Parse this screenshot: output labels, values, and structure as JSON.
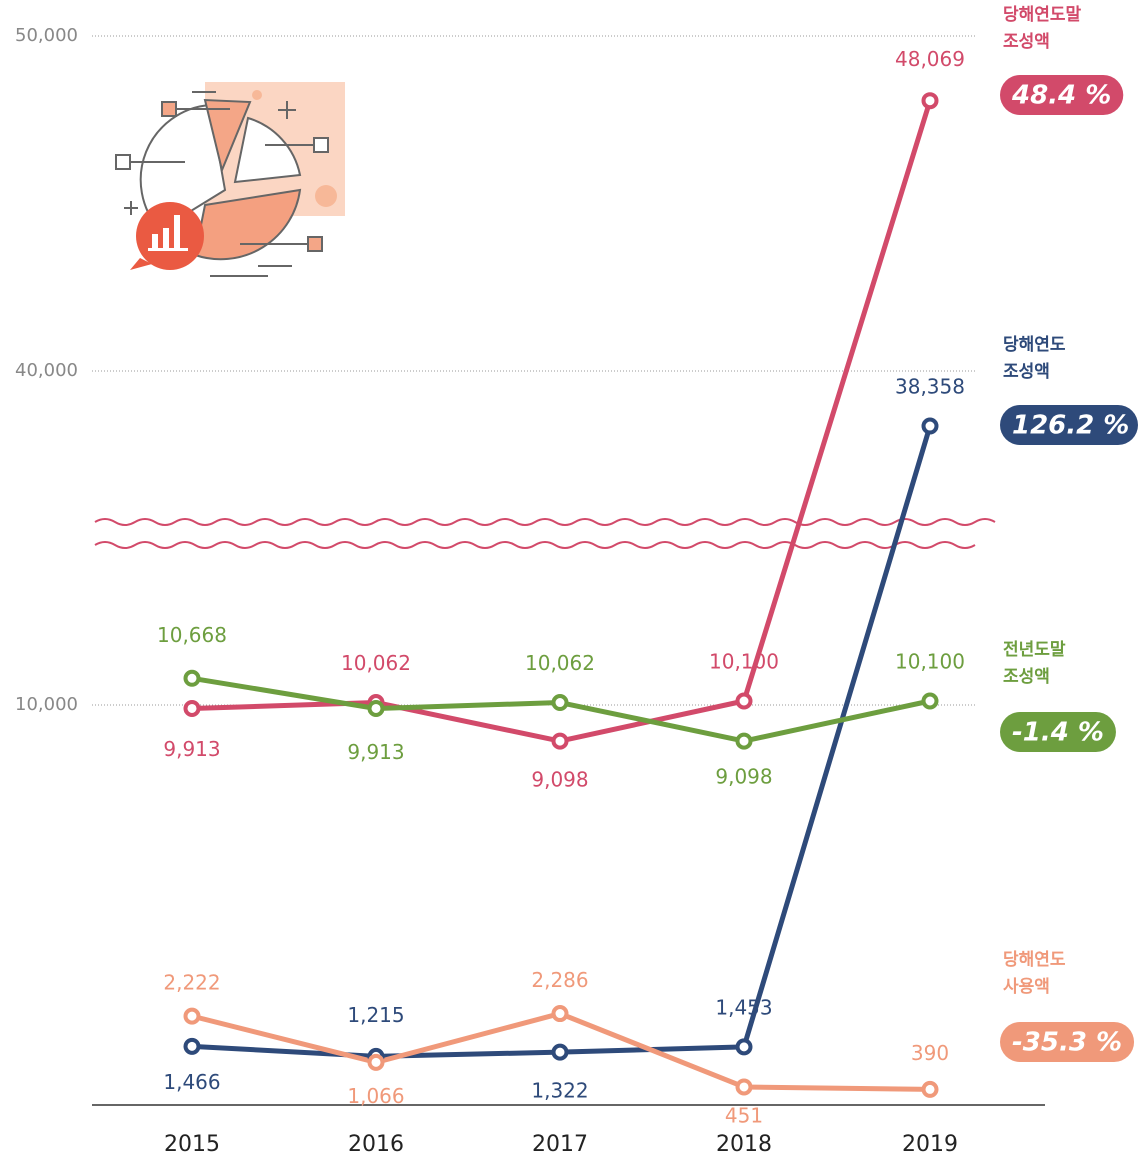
{
  "chart_data": {
    "type": "line",
    "categories": [
      "2015",
      "2016",
      "2017",
      "2018",
      "2019"
    ],
    "ylim": [
      0,
      50000
    ],
    "yticks": [
      {
        "value": 10000,
        "label": "10,000"
      },
      {
        "value": 40000,
        "label": "40,000"
      },
      {
        "value": 50000,
        "label": "50,000"
      }
    ],
    "grid": true,
    "series": [
      {
        "name": "당해연도말 조성액",
        "color": "#d24a6a",
        "values": [
          9913,
          10062,
          9098,
          10100,
          48069
        ],
        "value_labels": [
          "9,913",
          "10,062",
          "9,098",
          "10,100",
          "48,069"
        ],
        "change": "48.4 %"
      },
      {
        "name": "당해연도 조성액",
        "color": "#2e4a7a",
        "values": [
          1466,
          1215,
          1322,
          1453,
          38358
        ],
        "value_labels": [
          "1,466",
          "1,215",
          "1,322",
          "1,453",
          "38,358"
        ],
        "change": "126.2 %"
      },
      {
        "name": "전년도말 조성액",
        "color": "#6d9e3f",
        "values": [
          10668,
          9913,
          10062,
          9098,
          10100
        ],
        "value_labels": [
          "10,668",
          "9,913",
          "10,062",
          "9,098",
          "10,100"
        ],
        "change": "-1.4 %"
      },
      {
        "name": "당해연도 사용액",
        "color": "#f0997a",
        "values": [
          2222,
          1066,
          2286,
          451,
          390
        ],
        "value_labels": [
          "2,222",
          "1,066",
          "2,286",
          "451",
          "390"
        ],
        "change": "-35.3 %"
      }
    ]
  }
}
